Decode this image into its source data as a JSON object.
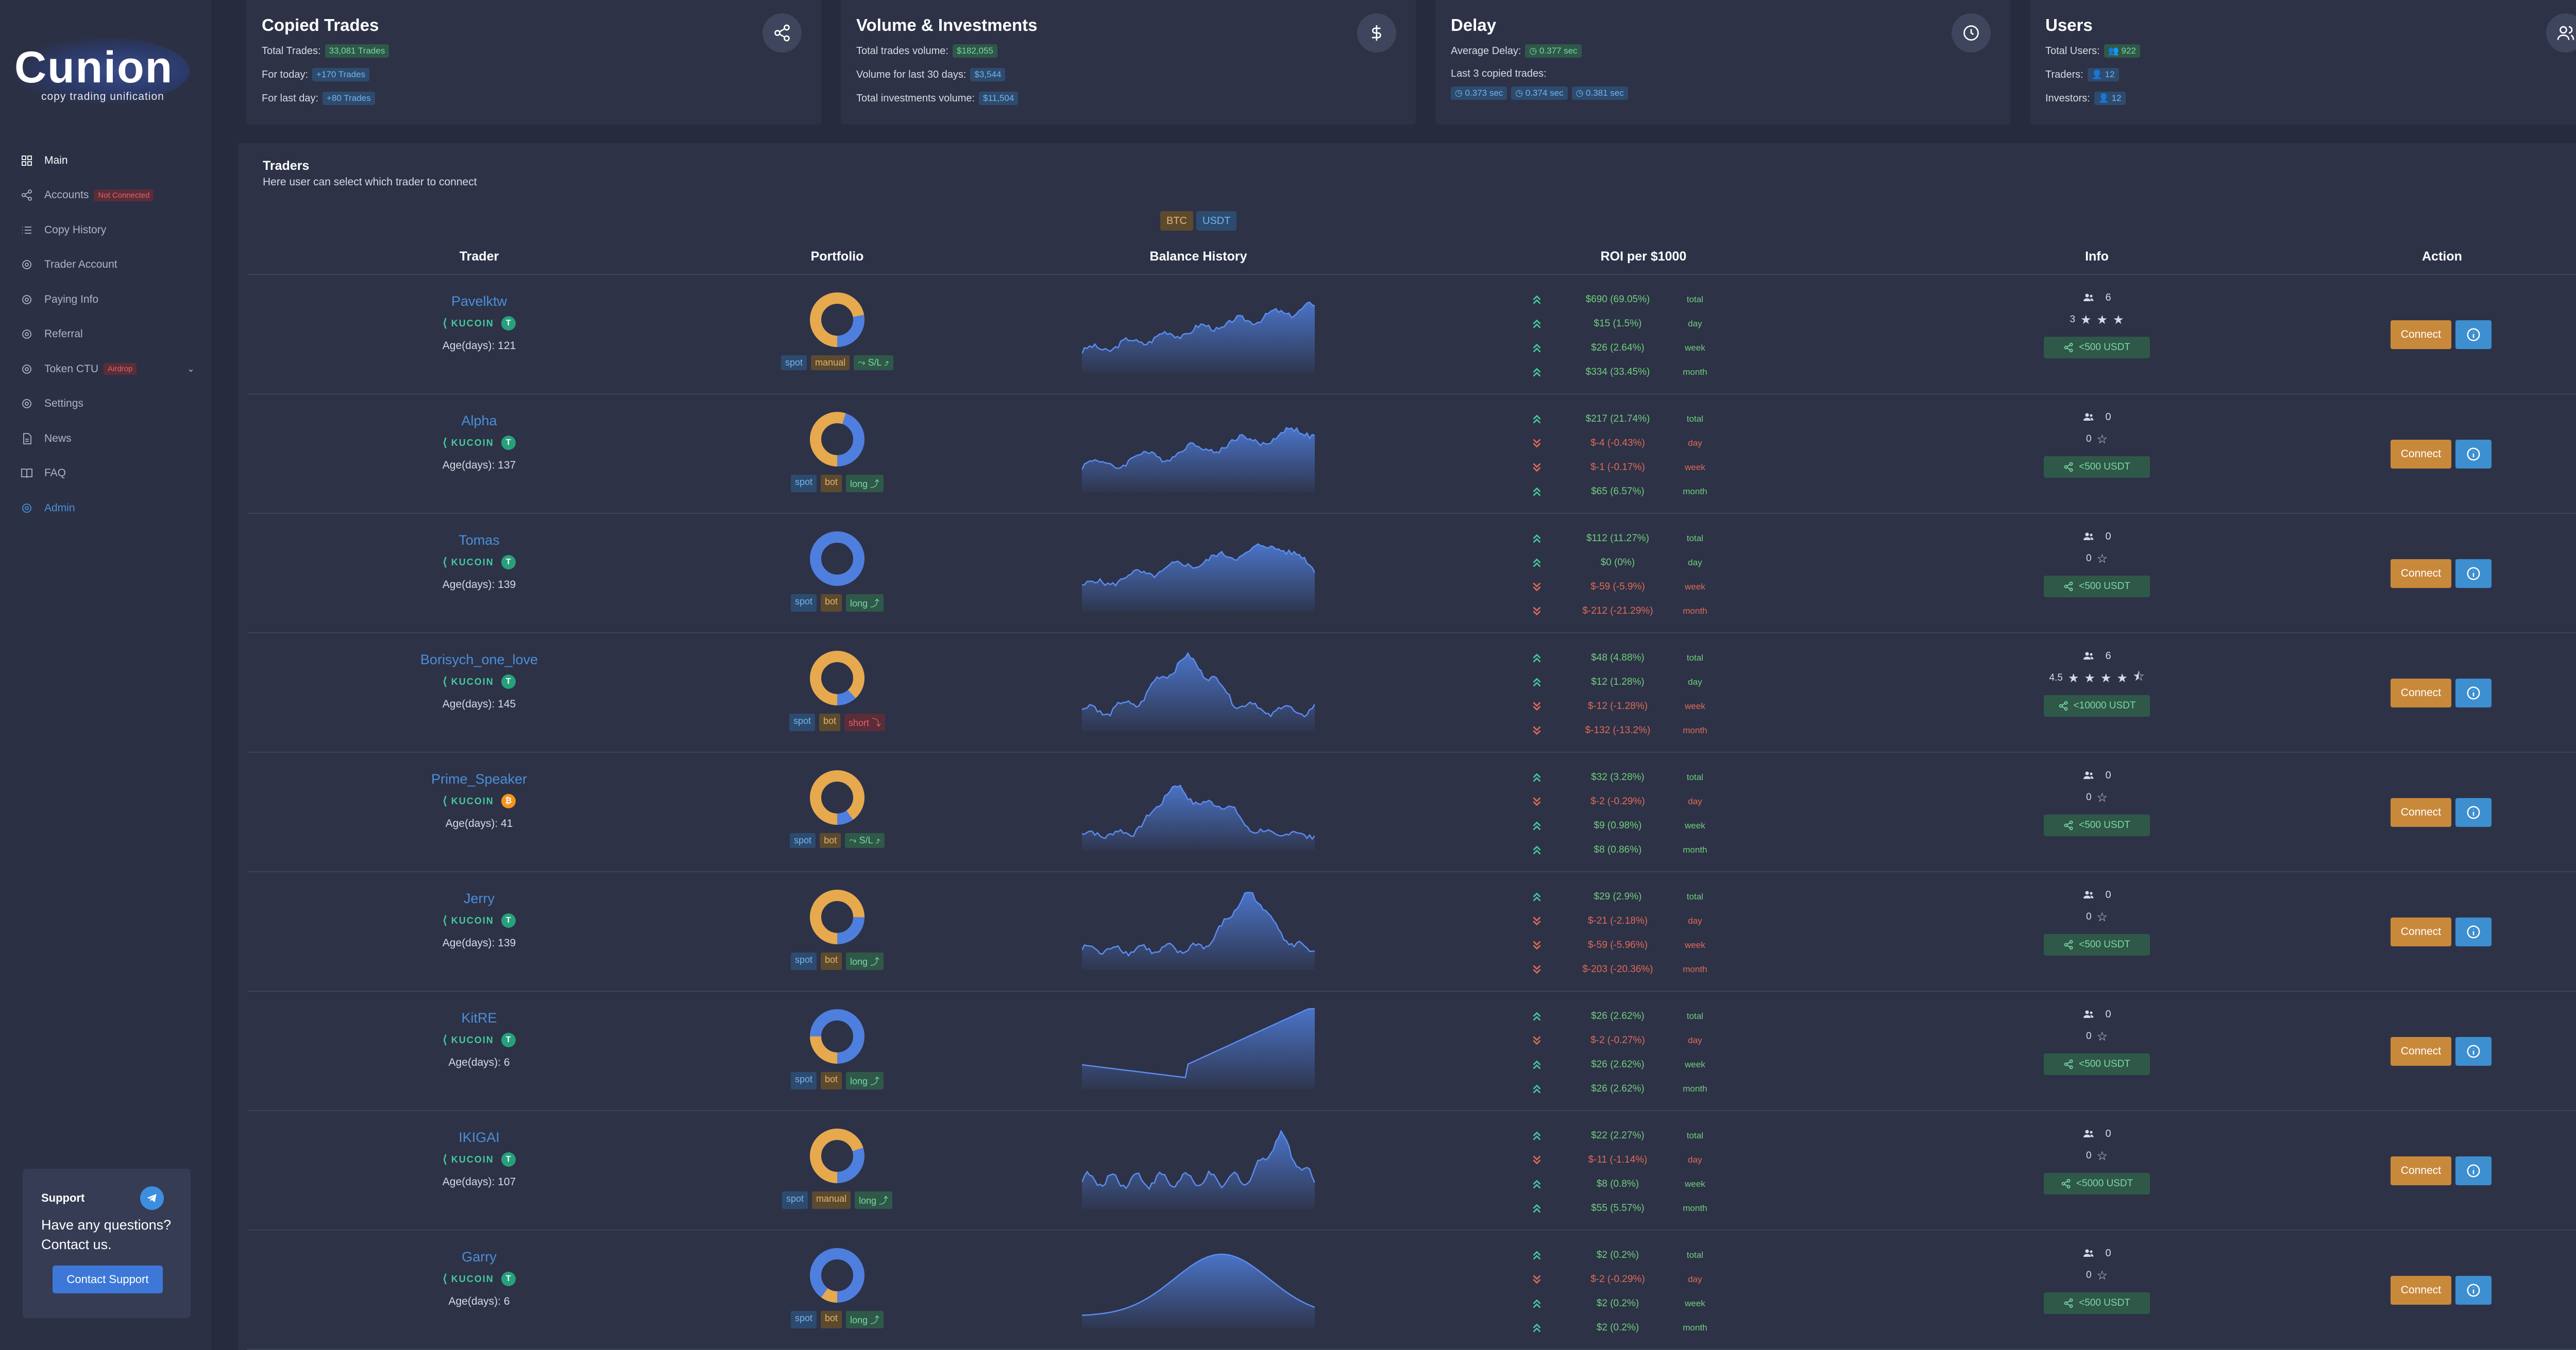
{
  "logo": {
    "text": "Cunion",
    "tagline": "copy trading unification"
  },
  "nav": [
    {
      "label": "Main",
      "icon": "grid-icon",
      "state": "active"
    },
    {
      "label": "Accounts",
      "icon": "share-icon",
      "badge": "Not Connected"
    },
    {
      "label": "Copy History",
      "icon": "list-icon"
    },
    {
      "label": "Trader Account",
      "icon": "gear-icon"
    },
    {
      "label": "Paying Info",
      "icon": "gear-icon"
    },
    {
      "label": "Referral",
      "icon": "gear-icon"
    },
    {
      "label": "Token CTU",
      "icon": "gear-icon",
      "badge": "Airdrop",
      "expandable": true
    },
    {
      "label": "Settings",
      "icon": "gear-icon"
    },
    {
      "label": "News",
      "icon": "document-icon"
    },
    {
      "label": "FAQ",
      "icon": "book-icon"
    },
    {
      "label": "Admin",
      "icon": "gear-icon",
      "state": "admin"
    }
  ],
  "support": {
    "title": "Support",
    "text": "Have any questions? Contact us.",
    "button": "Contact Support"
  },
  "cards": {
    "copied_trades": {
      "title": "Copied Trades",
      "total_label": "Total Trades:",
      "total_value": "33,081 Trades",
      "today_label": "For today:",
      "today_value": "+170 Trades",
      "lastday_label": "For last day:",
      "lastday_value": "+80 Trades"
    },
    "volume": {
      "title": "Volume & Investments",
      "total_label": "Total trades volume:",
      "total_value": "$182,055",
      "last30_label": "Volume for last 30 days:",
      "last30_value": "$3,544",
      "invest_label": "Total investments volume:",
      "invest_value": "$11,504"
    },
    "delay": {
      "title": "Delay",
      "avg_label": "Average Delay:",
      "avg_value": "0.377 sec",
      "last3_label": "Last 3 copied trades:",
      "last3": [
        "0.373 sec",
        "0.374 sec",
        "0.381 sec"
      ]
    },
    "users": {
      "title": "Users",
      "total_label": "Total Users:",
      "total_value": "922",
      "traders_label": "Traders:",
      "traders_value": "12",
      "investors_label": "Investors:",
      "investors_value": "12"
    }
  },
  "traders_panel": {
    "title": "Traders",
    "subtitle": "Here user can select which trader to connect",
    "currencies": [
      "BTC",
      "USDT"
    ],
    "columns": [
      "Trader",
      "Portfolio",
      "Balance History",
      "ROI per $1000",
      "Info",
      "Action"
    ],
    "connect_label": "Connect",
    "rows": [
      {
        "name": "Pavelktw",
        "exchange": "KUCOIN",
        "coin": "T",
        "age": "Age(days): 121",
        "donut": 0.72,
        "tags": [
          "spot",
          "manual",
          "S/L"
        ],
        "followers": "6",
        "rating": "3",
        "stars": 3,
        "half": false,
        "limit": "<500 USDT",
        "roi": [
          [
            "$690 (69.05%)",
            "total",
            1
          ],
          [
            "$15 (1.5%)",
            "day",
            1
          ],
          [
            "$26 (2.64%)",
            "week",
            1
          ],
          [
            "$334 (33.45%)",
            "month",
            1
          ]
        ]
      },
      {
        "name": "Alpha",
        "exchange": "KUCOIN",
        "coin": "T",
        "age": "Age(days): 137",
        "donut": 0.55,
        "tags": [
          "spot",
          "bot",
          "long"
        ],
        "followers": "0",
        "rating": "0",
        "stars": 1,
        "half": false,
        "limit": "<500 USDT",
        "roi": [
          [
            "$217 (21.74%)",
            "total",
            1
          ],
          [
            "$-4 (-0.43%)",
            "day",
            0
          ],
          [
            "$-1 (-0.17%)",
            "week",
            0
          ],
          [
            "$65 (6.57%)",
            "month",
            1
          ]
        ]
      },
      {
        "name": "Tomas",
        "exchange": "KUCOIN",
        "coin": "T",
        "age": "Age(days): 139",
        "donut": 0.0,
        "tags": [
          "spot",
          "bot",
          "long"
        ],
        "followers": "0",
        "rating": "0",
        "stars": 1,
        "half": false,
        "limit": "<500 USDT",
        "roi": [
          [
            "$112 (11.27%)",
            "total",
            1
          ],
          [
            "$0 (0%)",
            "day",
            1
          ],
          [
            "$-59 (-5.9%)",
            "week",
            0
          ],
          [
            "$-212 (-21.29%)",
            "month",
            0
          ]
        ]
      },
      {
        "name": "Borisych_one_love",
        "exchange": "KUCOIN",
        "coin": "T",
        "age": "Age(days): 145",
        "donut": 0.88,
        "tags": [
          "spot",
          "bot",
          "short"
        ],
        "followers": "6",
        "rating": "4.5",
        "stars": 4,
        "half": true,
        "limit": "<10000 USDT",
        "roi": [
          [
            "$48 (4.88%)",
            "total",
            1
          ],
          [
            "$12 (1.28%)",
            "day",
            1
          ],
          [
            "$-12 (-1.28%)",
            "week",
            0
          ],
          [
            "$-132 (-13.2%)",
            "month",
            0
          ]
        ]
      },
      {
        "name": "Prime_Speaker",
        "exchange": "KUCOIN",
        "coin": "B",
        "age": "Age(days): 41",
        "donut": 0.9,
        "tags": [
          "spot",
          "bot",
          "S/L"
        ],
        "followers": "0",
        "rating": "0",
        "stars": 1,
        "half": false,
        "limit": "<500 USDT",
        "roi": [
          [
            "$32 (3.28%)",
            "total",
            1
          ],
          [
            "$-2 (-0.29%)",
            "day",
            0
          ],
          [
            "$9 (0.98%)",
            "week",
            1
          ],
          [
            "$8 (0.86%)",
            "month",
            1
          ]
        ]
      },
      {
        "name": "Jerry",
        "exchange": "KUCOIN",
        "coin": "T",
        "age": "Age(days): 139",
        "donut": 0.75,
        "tags": [
          "spot",
          "bot",
          "long"
        ],
        "followers": "0",
        "rating": "0",
        "stars": 1,
        "half": false,
        "limit": "<500 USDT",
        "roi": [
          [
            "$29 (2.9%)",
            "total",
            1
          ],
          [
            "$-21 (-2.18%)",
            "day",
            0
          ],
          [
            "$-59 (-5.96%)",
            "week",
            0
          ],
          [
            "$-203 (-20.36%)",
            "month",
            0
          ]
        ]
      },
      {
        "name": "KitRE",
        "exchange": "KUCOIN",
        "coin": "T",
        "age": "Age(days): 6",
        "donut": 0.25,
        "tags": [
          "spot",
          "bot",
          "long"
        ],
        "followers": "0",
        "rating": "0",
        "stars": 1,
        "half": false,
        "limit": "<500 USDT",
        "roi": [
          [
            "$26 (2.62%)",
            "total",
            1
          ],
          [
            "$-2 (-0.27%)",
            "day",
            0
          ],
          [
            "$26 (2.62%)",
            "week",
            1
          ],
          [
            "$26 (2.62%)",
            "month",
            1
          ]
        ]
      },
      {
        "name": "IKIGAI",
        "exchange": "KUCOIN",
        "coin": "T",
        "age": "Age(days): 107",
        "donut": 0.7,
        "tags": [
          "spot",
          "manual",
          "long"
        ],
        "followers": "0",
        "rating": "0",
        "stars": 1,
        "half": false,
        "limit": "<5000 USDT",
        "roi": [
          [
            "$22 (2.27%)",
            "total",
            1
          ],
          [
            "$-11 (-1.14%)",
            "day",
            0
          ],
          [
            "$8 (0.8%)",
            "week",
            1
          ],
          [
            "$55 (5.57%)",
            "month",
            1
          ]
        ]
      },
      {
        "name": "Garry",
        "exchange": "KUCOIN",
        "coin": "T",
        "age": "Age(days): 6",
        "donut": 0.1,
        "tags": [
          "spot",
          "bot",
          "long"
        ],
        "followers": "0",
        "rating": "0",
        "stars": 1,
        "half": false,
        "limit": "<500 USDT",
        "roi": [
          [
            "$2 (0.2%)",
            "total",
            1
          ],
          [
            "$-2 (-0.29%)",
            "day",
            0
          ],
          [
            "$2 (0.2%)",
            "week",
            1
          ],
          [
            "$2 (0.2%)",
            "month",
            1
          ]
        ]
      }
    ]
  },
  "colors": {
    "accent_blue": "#4b8fd8",
    "donut_blue": "#4f7fde",
    "donut_orange": "#e7a94d",
    "positive": "#6fce7a",
    "negative": "#e06a55",
    "connect": "#c9893b"
  }
}
